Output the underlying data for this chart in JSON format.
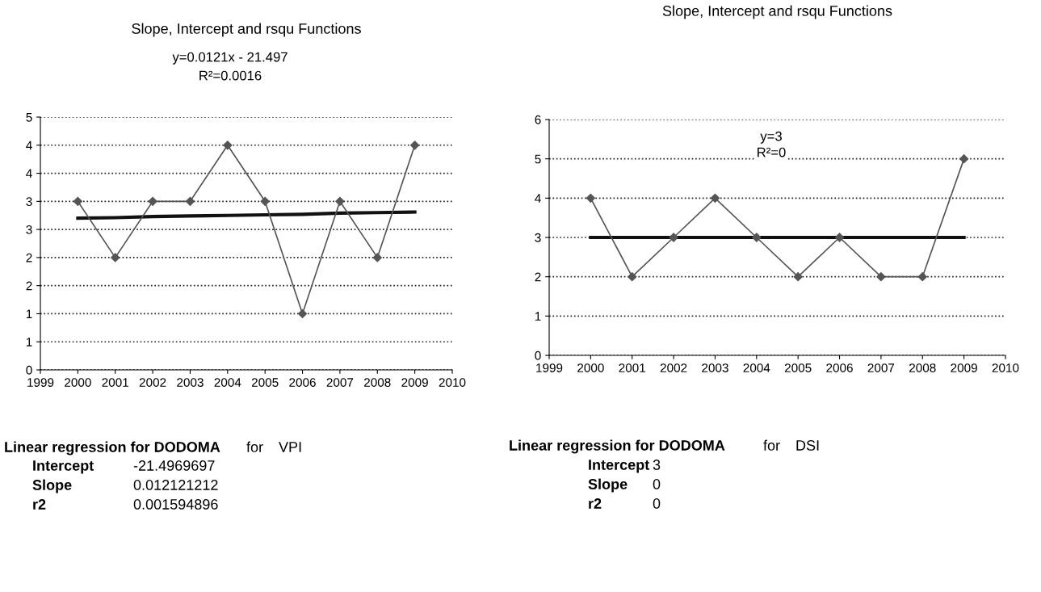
{
  "chart_data": [
    {
      "type": "line",
      "title": "Slope, Intercept and rsqu Functions",
      "x": [
        2000,
        2001,
        2002,
        2003,
        2004,
        2005,
        2006,
        2007,
        2008,
        2009
      ],
      "series": [
        {
          "color": "#555555",
          "marker": "diamond",
          "values": [
            3,
            2,
            3,
            3,
            4,
            3,
            1,
            3,
            2,
            4
          ]
        },
        {
          "type": "line",
          "color": "#111111",
          "marker": "none",
          "values": [
            2.7,
            2.71,
            2.73,
            2.74,
            2.75,
            2.76,
            2.77,
            2.79,
            2.8,
            2.81
          ]
        }
      ],
      "xlim": [
        1999,
        2010
      ],
      "xticks": [
        1999,
        2000,
        2001,
        2002,
        2003,
        2004,
        2005,
        2006,
        2007,
        2008,
        2009,
        2010
      ],
      "ylim": [
        0,
        4.5
      ],
      "yticks": [
        0,
        {
          "value": 0.5,
          "label": "1"
        },
        1,
        {
          "value": 1.5,
          "label": "2"
        },
        2,
        {
          "value": 2.5,
          "label": "3"
        },
        3,
        {
          "value": 3.5,
          "label": "4"
        },
        4,
        {
          "value": 4.5,
          "label": "5"
        }
      ],
      "grid": "y",
      "annotations": [
        "y=0.0121x - 21.497",
        "R²=0.0016",
        "Linear regression for DODOMA",
        "for",
        "VPI",
        "Intercept",
        "-21.4969697",
        "Slope",
        "0.012121212",
        "r2",
        "0.001594896"
      ]
    },
    {
      "type": "line",
      "title": "Slope, Intercept and rsqu Functions",
      "x": [
        2000,
        2001,
        2002,
        2003,
        2004,
        2005,
        2006,
        2007,
        2008,
        2009
      ],
      "series": [
        {
          "color": "#555555",
          "marker": "diamond",
          "values": [
            4,
            2,
            3,
            4,
            3,
            2,
            3,
            2,
            2,
            5
          ]
        },
        {
          "type": "line",
          "color": "#111111",
          "marker": "none",
          "values": [
            3,
            3,
            3,
            3,
            3,
            3,
            3,
            3,
            3,
            3
          ]
        }
      ],
      "xlim": [
        1999,
        2010
      ],
      "xticks": [
        1999,
        2000,
        2001,
        2002,
        2003,
        2004,
        2005,
        2006,
        2007,
        2008,
        2009,
        2010
      ],
      "ylim": [
        0,
        6
      ],
      "yticks": [
        0,
        1,
        2,
        3,
        4,
        5,
        6
      ],
      "grid": "y",
      "annotations": [
        "y=3",
        "R²=0",
        "Linear regression for DODOMA",
        "for",
        "DSI",
        "Intercept",
        "3",
        "Slope",
        "0",
        "r2",
        "0"
      ]
    }
  ]
}
